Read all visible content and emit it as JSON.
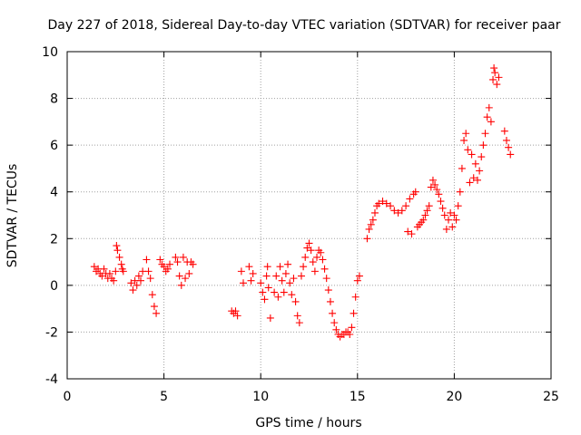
{
  "chart_data": {
    "type": "scatter",
    "title": "Day 227 of 2018, Sidereal Day-to-day VTEC variation (SDTVAR) for receiver paar",
    "xlabel": "GPS time / hours",
    "ylabel": "SDTVAR / TECUs",
    "xlim": [
      0,
      25
    ],
    "ylim": [
      -4,
      10
    ],
    "x_ticks": [
      "0",
      "5",
      "10",
      "15",
      "20",
      "25"
    ],
    "y_ticks": [
      "-4",
      "-2",
      "0",
      "2",
      "4",
      "6",
      "8",
      "10"
    ],
    "grid": true,
    "marker": "plus",
    "series": [
      {
        "color": "#ff0000",
        "points": [
          [
            1.4,
            0.8
          ],
          [
            1.5,
            0.6
          ],
          [
            1.6,
            0.7
          ],
          [
            1.7,
            0.5
          ],
          [
            1.8,
            0.4
          ],
          [
            1.9,
            0.7
          ],
          [
            2.0,
            0.5
          ],
          [
            2.1,
            0.3
          ],
          [
            2.2,
            0.5
          ],
          [
            2.3,
            0.3
          ],
          [
            2.4,
            0.2
          ],
          [
            2.5,
            0.6
          ],
          [
            2.55,
            1.7
          ],
          [
            2.6,
            1.5
          ],
          [
            2.7,
            1.2
          ],
          [
            2.8,
            0.9
          ],
          [
            2.85,
            0.7
          ],
          [
            2.9,
            0.6
          ],
          [
            3.3,
            0.1
          ],
          [
            3.4,
            -0.2
          ],
          [
            3.5,
            0.2
          ],
          [
            3.6,
            0.0
          ],
          [
            3.7,
            0.4
          ],
          [
            3.8,
            0.2
          ],
          [
            3.9,
            0.6
          ],
          [
            4.1,
            1.1
          ],
          [
            4.2,
            0.6
          ],
          [
            4.3,
            0.3
          ],
          [
            4.4,
            -0.4
          ],
          [
            4.5,
            -0.9
          ],
          [
            4.6,
            -1.2
          ],
          [
            4.8,
            1.1
          ],
          [
            4.9,
            0.9
          ],
          [
            5.0,
            0.8
          ],
          [
            5.1,
            0.6
          ],
          [
            5.2,
            0.7
          ],
          [
            5.3,
            0.9
          ],
          [
            5.6,
            1.2
          ],
          [
            5.7,
            1.0
          ],
          [
            5.8,
            0.4
          ],
          [
            5.9,
            0.0
          ],
          [
            6.0,
            1.2
          ],
          [
            6.1,
            0.3
          ],
          [
            6.2,
            1.0
          ],
          [
            6.3,
            0.5
          ],
          [
            6.4,
            1.0
          ],
          [
            6.5,
            0.9
          ],
          [
            8.5,
            -1.1
          ],
          [
            8.6,
            -1.2
          ],
          [
            8.7,
            -1.1
          ],
          [
            8.8,
            -1.3
          ],
          [
            9.0,
            0.6
          ],
          [
            9.1,
            0.1
          ],
          [
            9.4,
            0.8
          ],
          [
            9.5,
            0.2
          ],
          [
            9.6,
            0.5
          ],
          [
            10.0,
            0.1
          ],
          [
            10.1,
            -0.3
          ],
          [
            10.2,
            -0.6
          ],
          [
            10.3,
            0.4
          ],
          [
            10.35,
            0.8
          ],
          [
            10.4,
            -0.1
          ],
          [
            10.5,
            -1.4
          ],
          [
            10.7,
            -0.3
          ],
          [
            10.8,
            0.4
          ],
          [
            10.9,
            -0.5
          ],
          [
            11.0,
            0.8
          ],
          [
            11.1,
            0.2
          ],
          [
            11.2,
            -0.3
          ],
          [
            11.3,
            0.5
          ],
          [
            11.4,
            0.9
          ],
          [
            11.5,
            0.1
          ],
          [
            11.6,
            -0.4
          ],
          [
            11.7,
            0.3
          ],
          [
            11.8,
            -0.7
          ],
          [
            11.9,
            -1.3
          ],
          [
            12.0,
            -1.6
          ],
          [
            12.1,
            0.4
          ],
          [
            12.2,
            0.8
          ],
          [
            12.3,
            1.2
          ],
          [
            12.4,
            1.6
          ],
          [
            12.5,
            1.8
          ],
          [
            12.6,
            1.5
          ],
          [
            12.7,
            1.0
          ],
          [
            12.8,
            0.6
          ],
          [
            12.9,
            1.2
          ],
          [
            13.0,
            1.5
          ],
          [
            13.1,
            1.4
          ],
          [
            13.2,
            1.1
          ],
          [
            13.3,
            0.7
          ],
          [
            13.4,
            0.3
          ],
          [
            13.5,
            -0.2
          ],
          [
            13.6,
            -0.7
          ],
          [
            13.7,
            -1.2
          ],
          [
            13.8,
            -1.6
          ],
          [
            13.9,
            -1.9
          ],
          [
            14.0,
            -2.1
          ],
          [
            14.1,
            -2.2
          ],
          [
            14.2,
            -2.1
          ],
          [
            14.3,
            -2.1
          ],
          [
            14.4,
            -2.0
          ],
          [
            14.5,
            -2.0
          ],
          [
            14.6,
            -2.1
          ],
          [
            14.7,
            -1.8
          ],
          [
            14.8,
            -1.2
          ],
          [
            14.9,
            -0.5
          ],
          [
            15.0,
            0.2
          ],
          [
            15.1,
            0.4
          ],
          [
            15.5,
            2.0
          ],
          [
            15.6,
            2.4
          ],
          [
            15.7,
            2.6
          ],
          [
            15.8,
            2.8
          ],
          [
            15.9,
            3.1
          ],
          [
            16.0,
            3.4
          ],
          [
            16.1,
            3.5
          ],
          [
            16.3,
            3.6
          ],
          [
            16.5,
            3.5
          ],
          [
            16.7,
            3.4
          ],
          [
            16.9,
            3.2
          ],
          [
            17.1,
            3.1
          ],
          [
            17.3,
            3.2
          ],
          [
            17.5,
            3.4
          ],
          [
            17.6,
            2.3
          ],
          [
            17.7,
            3.7
          ],
          [
            17.8,
            2.2
          ],
          [
            17.9,
            3.9
          ],
          [
            18.0,
            4.0
          ],
          [
            18.1,
            2.5
          ],
          [
            18.2,
            2.6
          ],
          [
            18.3,
            2.7
          ],
          [
            18.4,
            2.8
          ],
          [
            18.5,
            3.0
          ],
          [
            18.6,
            3.2
          ],
          [
            18.7,
            3.4
          ],
          [
            18.8,
            4.2
          ],
          [
            18.9,
            4.5
          ],
          [
            19.0,
            4.3
          ],
          [
            19.1,
            4.1
          ],
          [
            19.2,
            3.9
          ],
          [
            19.3,
            3.6
          ],
          [
            19.4,
            3.3
          ],
          [
            19.5,
            3.0
          ],
          [
            19.6,
            2.4
          ],
          [
            19.7,
            2.8
          ],
          [
            19.8,
            3.1
          ],
          [
            19.9,
            2.5
          ],
          [
            20.0,
            3.0
          ],
          [
            20.1,
            2.8
          ],
          [
            20.2,
            3.4
          ],
          [
            20.3,
            4.0
          ],
          [
            20.4,
            5.0
          ],
          [
            20.5,
            6.2
          ],
          [
            20.6,
            6.5
          ],
          [
            20.7,
            5.8
          ],
          [
            20.8,
            4.4
          ],
          [
            20.9,
            5.6
          ],
          [
            21.0,
            4.6
          ],
          [
            21.1,
            5.2
          ],
          [
            21.2,
            4.5
          ],
          [
            21.3,
            4.9
          ],
          [
            21.4,
            5.5
          ],
          [
            21.5,
            6.0
          ],
          [
            21.6,
            6.5
          ],
          [
            21.7,
            7.2
          ],
          [
            21.8,
            7.6
          ],
          [
            21.9,
            7.0
          ],
          [
            22.0,
            8.8
          ],
          [
            22.05,
            9.3
          ],
          [
            22.1,
            9.1
          ],
          [
            22.2,
            8.6
          ],
          [
            22.3,
            8.9
          ],
          [
            22.6,
            6.6
          ],
          [
            22.7,
            6.2
          ],
          [
            22.8,
            5.9
          ],
          [
            22.9,
            5.6
          ]
        ]
      }
    ]
  }
}
